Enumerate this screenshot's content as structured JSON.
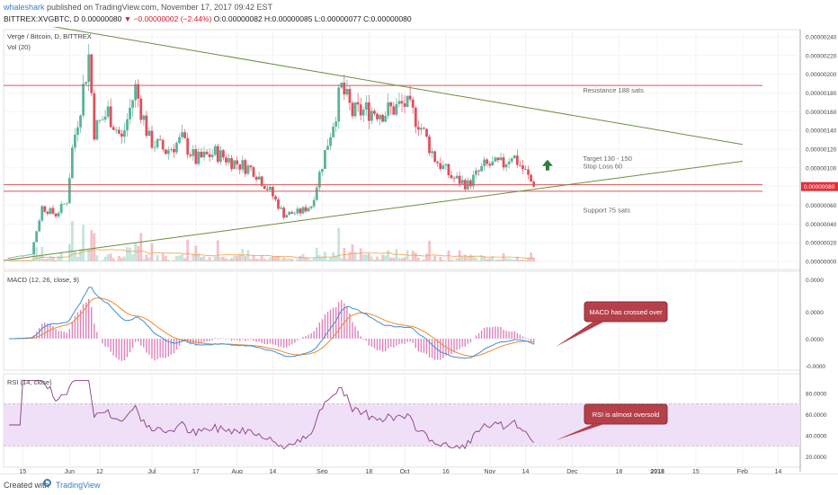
{
  "header": {
    "user": "whaleshark",
    "published": "published on TradingView.com, November 17, 2017 09:42 EST",
    "ticker_line": "BITTREX:XVGBTC, D  0.00000080 ",
    "change": "▼ −0.00000002 (−2.44%)",
    "ohlc": " O:0.00000082 H:0.00000085 L:0.00000077 C:0.00000080"
  },
  "footer": {
    "created": "Created with",
    "brand": "TradingView"
  },
  "colors": {
    "up": "#5ab39a",
    "down": "#e0505e",
    "macd": "#3a8fd8",
    "signal": "#f08a2c",
    "rsi": "#8a3c8a",
    "hist": "#cf4fa0",
    "trend": "#6b8f3e",
    "level": "#d45a5a"
  },
  "chart_data": [
    {
      "type": "candlestick",
      "title": "Verge / Bitcoin, D, BITTREX",
      "volume_label": "Vol (20)",
      "ylim": [
        0.0,
        2.4e-06
      ],
      "y_ticks": [
        "0.00000240",
        "0.00000220",
        "0.00000200",
        "0.00000180",
        "0.00000160",
        "0.00000140",
        "0.00000120",
        "0.00000100",
        "0.00000080",
        "0.00000060",
        "0.00000040",
        "0.00000020",
        "0.00000000"
      ],
      "last_price_label": "0.00000080",
      "x_ticks": [
        "15",
        "Jun",
        "12",
        "Jul",
        "17",
        "Aug",
        "14",
        "Sep",
        "18",
        "Oct",
        "16",
        "Nov",
        "14",
        "Dec",
        "18",
        "2018",
        "15",
        "Feb",
        "14"
      ],
      "close_waypoints": [
        {
          "date": "2017-05-10",
          "close": 4e-08
        },
        {
          "date": "2017-05-18",
          "close": 8e-08
        },
        {
          "date": "2017-05-22",
          "close": 5.8e-07
        },
        {
          "date": "2017-05-27",
          "close": 5e-07
        },
        {
          "date": "2017-05-31",
          "close": 6.5e-07
        },
        {
          "date": "2017-06-02",
          "close": 1.2e-06
        },
        {
          "date": "2017-06-06",
          "close": 1.85e-06
        },
        {
          "date": "2017-06-08",
          "close": 2.2e-06
        },
        {
          "date": "2017-06-10",
          "close": 1.4e-06
        },
        {
          "date": "2017-06-15",
          "close": 1.6e-06
        },
        {
          "date": "2017-06-20",
          "close": 1.3e-06
        },
        {
          "date": "2017-06-25",
          "close": 1.85e-06
        },
        {
          "date": "2017-06-30",
          "close": 1.3e-06
        },
        {
          "date": "2017-07-06",
          "close": 1.18e-06
        },
        {
          "date": "2017-07-12",
          "close": 1.3e-06
        },
        {
          "date": "2017-07-17",
          "close": 1.08e-06
        },
        {
          "date": "2017-07-24",
          "close": 1.16e-06
        },
        {
          "date": "2017-07-31",
          "close": 1.06e-06
        },
        {
          "date": "2017-08-07",
          "close": 9.8e-07
        },
        {
          "date": "2017-08-13",
          "close": 7.5e-07
        },
        {
          "date": "2017-08-18",
          "close": 5e-07
        },
        {
          "date": "2017-08-24",
          "close": 5.3e-07
        },
        {
          "date": "2017-08-28",
          "close": 6e-07
        },
        {
          "date": "2017-09-01",
          "close": 1.05e-06
        },
        {
          "date": "2017-09-05",
          "close": 1.5e-06
        },
        {
          "date": "2017-09-08",
          "close": 1.85e-06
        },
        {
          "date": "2017-09-12",
          "close": 1.58e-06
        },
        {
          "date": "2017-09-18",
          "close": 1.62e-06
        },
        {
          "date": "2017-09-24",
          "close": 1.6e-06
        },
        {
          "date": "2017-10-01",
          "close": 1.68e-06
        },
        {
          "date": "2017-10-06",
          "close": 1.5e-06
        },
        {
          "date": "2017-10-12",
          "close": 1.1e-06
        },
        {
          "date": "2017-10-18",
          "close": 9e-07
        },
        {
          "date": "2017-10-24",
          "close": 8.2e-07
        },
        {
          "date": "2017-10-30",
          "close": 1.02e-06
        },
        {
          "date": "2017-11-06",
          "close": 1.04e-06
        },
        {
          "date": "2017-11-09",
          "close": 1.15e-06
        },
        {
          "date": "2017-11-14",
          "close": 9.5e-07
        },
        {
          "date": "2017-11-17",
          "close": 8e-07
        }
      ],
      "horizontal_levels": [
        1.88e-06,
        8.2e-07,
        7.5e-07
      ],
      "trendlines": [
        {
          "from": {
            "date": "2017-05-08",
            "price": 2.6e-06
          },
          "to": {
            "date": "2018-02-01",
            "price": 1.25e-06
          }
        },
        {
          "from": {
            "date": "2017-05-08",
            "price": 1e-08
          },
          "to": {
            "date": "2018-02-01",
            "price": 1.07e-06
          }
        }
      ],
      "annotations": [
        {
          "text": "Resistance 188 sats",
          "price": 1.88e-06,
          "date": "2017-12-18"
        },
        {
          "text": "Target 130 - 150",
          "price": 1.15e-06,
          "date": "2017-12-18"
        },
        {
          "text": "Stop Loss 60",
          "price": 1.07e-06,
          "date": "2017-12-18"
        },
        {
          "text": "Support 75 sats",
          "price": 6e-07,
          "date": "2017-12-18"
        }
      ]
    },
    {
      "type": "line",
      "title": "MACD (12, 26, close, 9)",
      "series_names": [
        "MACD",
        "Signal",
        "Histogram"
      ],
      "y_ticks": [
        "0.0000",
        "0.0000",
        "0.0000",
        "-0.0000"
      ],
      "callout": "MACD has crossed over"
    },
    {
      "type": "line",
      "title": "RSI (14, close)",
      "y_ticks": [
        "80.0000",
        "60.0000",
        "40.0000",
        "20.0000"
      ],
      "band": [
        30,
        70
      ],
      "callout": "RSI is almost oversold"
    }
  ]
}
